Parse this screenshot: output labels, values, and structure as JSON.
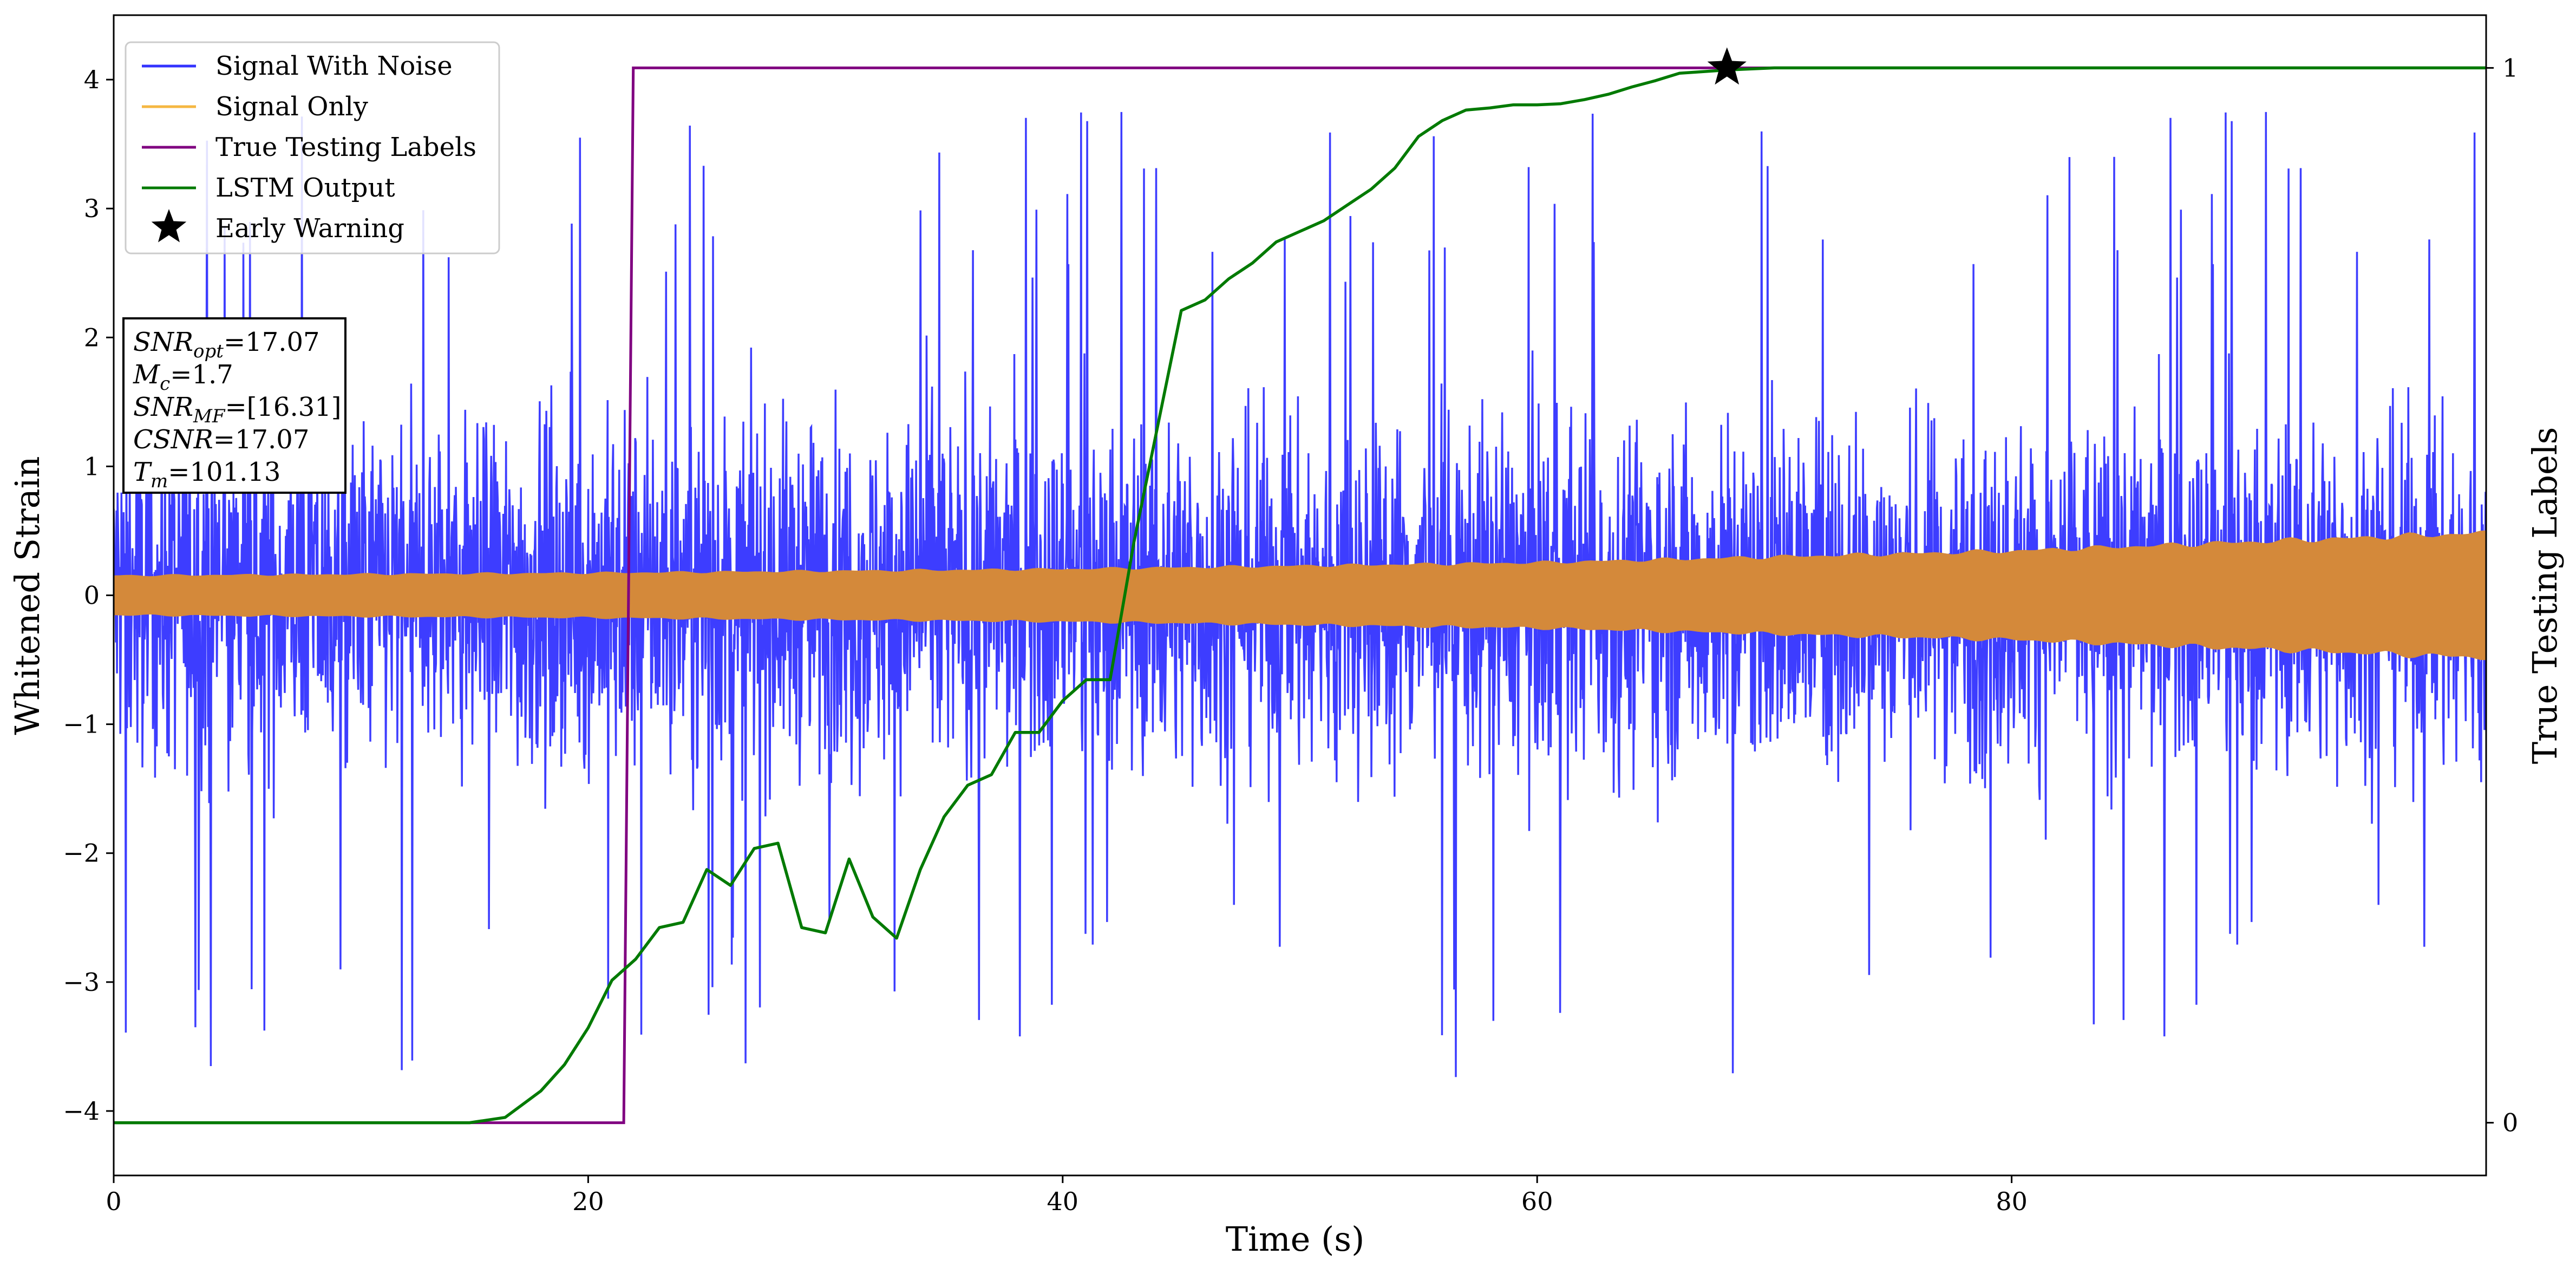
{
  "chart_data": {
    "type": "line",
    "xlabel": "Time (s)",
    "ylabel": "Whitened Strain",
    "ylabel_right": "True Testing Labels",
    "xlim": [
      0,
      100
    ],
    "ylim": [
      -4.5,
      4.5
    ],
    "ylim_right": [
      -0.05,
      1.05
    ],
    "xticks": [
      0,
      20,
      40,
      60,
      80
    ],
    "yticks": [
      -4,
      -3,
      -2,
      -1,
      0,
      1,
      2,
      3,
      4
    ],
    "yticks_right": [
      0,
      1
    ],
    "grid": false,
    "legend_position": "top-left",
    "legend": [
      {
        "label": "Signal With Noise",
        "color": "#3333ff",
        "marker": "line"
      },
      {
        "label": "Signal Only",
        "color": "#f5b742",
        "marker": "line"
      },
      {
        "label": "True Testing Labels",
        "color": "#800080",
        "marker": "line"
      },
      {
        "label": "LSTM Output",
        "color": "#007a00",
        "marker": "line"
      },
      {
        "label": "Early Warning",
        "color": "#000000",
        "marker": "star"
      }
    ],
    "annotation": {
      "lines": [
        {
          "name": "SNR",
          "sub": "opt",
          "value": "=17.07"
        },
        {
          "name": "M",
          "sub": "c",
          "value": "=1.7"
        },
        {
          "name": "SNR",
          "sub": "MF",
          "value": "=[16.31]"
        },
        {
          "name": "CSNR",
          "sub": "",
          "value": "=17.07"
        },
        {
          "name": "T",
          "sub": "m",
          "value": "=101.13"
        }
      ]
    },
    "series": [
      {
        "name": "Signal With Noise",
        "color": "#3333ff",
        "axis": "left",
        "description_stats": {
          "band_core": 1.5,
          "band_typical": 2.6,
          "extreme_min": -4.0,
          "extreme_max": 3.95
        },
        "t_range": [
          0,
          100
        ]
      },
      {
        "name": "Signal Only",
        "color": "#d4893a",
        "axis": "left",
        "envelope": {
          "x": [
            0,
            20,
            40,
            60,
            80,
            100
          ],
          "amplitude": [
            0.15,
            0.17,
            0.2,
            0.25,
            0.34,
            0.48
          ]
        }
      },
      {
        "name": "True Testing Labels",
        "color": "#800080",
        "axis": "right",
        "x": [
          0,
          21.5,
          21.9,
          100
        ],
        "y": [
          0,
          0,
          1,
          1
        ]
      },
      {
        "name": "LSTM Output",
        "color": "#007a00",
        "axis": "right",
        "x": [
          0,
          15,
          16.5,
          18,
          19,
          20,
          21,
          22,
          23,
          24,
          25,
          26,
          27,
          28,
          29,
          30,
          31,
          32,
          33,
          34,
          35,
          36,
          37,
          38,
          39,
          40,
          41,
          42,
          43,
          44,
          45,
          46,
          47,
          48,
          49,
          50,
          51,
          52,
          53,
          54,
          55,
          56,
          57,
          58,
          59,
          60,
          61,
          62,
          63,
          64,
          65,
          66,
          68,
          70,
          75,
          80,
          90,
          100
        ],
        "y": [
          0,
          0,
          0.005,
          0.03,
          0.055,
          0.09,
          0.135,
          0.155,
          0.185,
          0.19,
          0.24,
          0.225,
          0.26,
          0.265,
          0.185,
          0.18,
          0.25,
          0.195,
          0.175,
          0.24,
          0.29,
          0.32,
          0.33,
          0.37,
          0.37,
          0.4,
          0.42,
          0.42,
          0.55,
          0.66,
          0.77,
          0.78,
          0.8,
          0.815,
          0.835,
          0.845,
          0.855,
          0.87,
          0.885,
          0.905,
          0.935,
          0.95,
          0.96,
          0.962,
          0.965,
          0.965,
          0.966,
          0.97,
          0.975,
          0.982,
          0.988,
          0.995,
          0.998,
          1.0,
          1.0,
          1.0,
          1.0,
          1.0
        ]
      }
    ],
    "early_warning": {
      "x": 68,
      "y": 1.0,
      "axis": "right"
    }
  }
}
